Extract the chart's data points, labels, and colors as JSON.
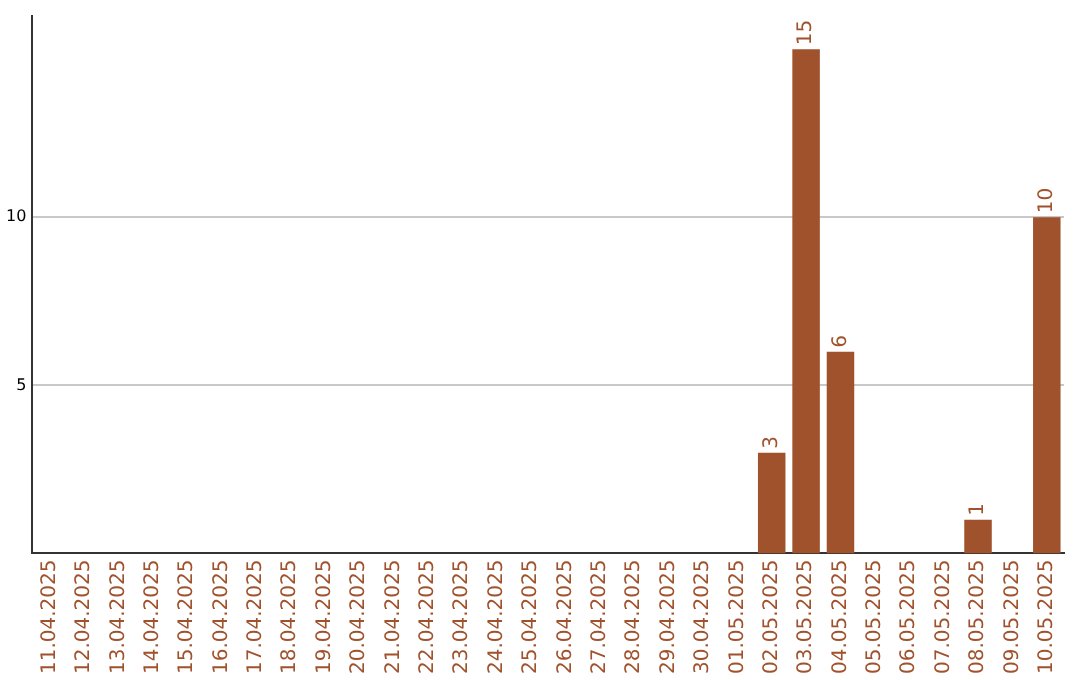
{
  "chart_data": {
    "type": "bar",
    "categories": [
      "11.04.2025",
      "12.04.2025",
      "13.04.2025",
      "14.04.2025",
      "15.04.2025",
      "16.04.2025",
      "17.04.2025",
      "18.04.2025",
      "19.04.2025",
      "20.04.2025",
      "21.04.2025",
      "22.04.2025",
      "23.04.2025",
      "24.04.2025",
      "25.04.2025",
      "26.04.2025",
      "27.04.2025",
      "28.04.2025",
      "29.04.2025",
      "30.04.2025",
      "01.05.2025",
      "02.05.2025",
      "03.05.2025",
      "04.05.2025",
      "05.05.2025",
      "06.05.2025",
      "07.05.2025",
      "08.05.2025",
      "09.05.2025",
      "10.05.2025"
    ],
    "values": [
      0,
      0,
      0,
      0,
      0,
      0,
      0,
      0,
      0,
      0,
      0,
      0,
      0,
      0,
      0,
      0,
      0,
      0,
      0,
      0,
      0,
      3,
      15,
      6,
      0,
      0,
      0,
      1,
      0,
      10
    ],
    "value_labels": [
      null,
      null,
      null,
      null,
      null,
      null,
      null,
      null,
      null,
      null,
      null,
      null,
      null,
      null,
      null,
      null,
      null,
      null,
      null,
      null,
      null,
      "3",
      "15",
      "6",
      null,
      null,
      null,
      "1",
      null,
      "10"
    ],
    "color": "#a0522d",
    "ylim": [
      0,
      16
    ],
    "yticks": [
      5,
      10
    ],
    "grid": "y",
    "legend": false
  }
}
